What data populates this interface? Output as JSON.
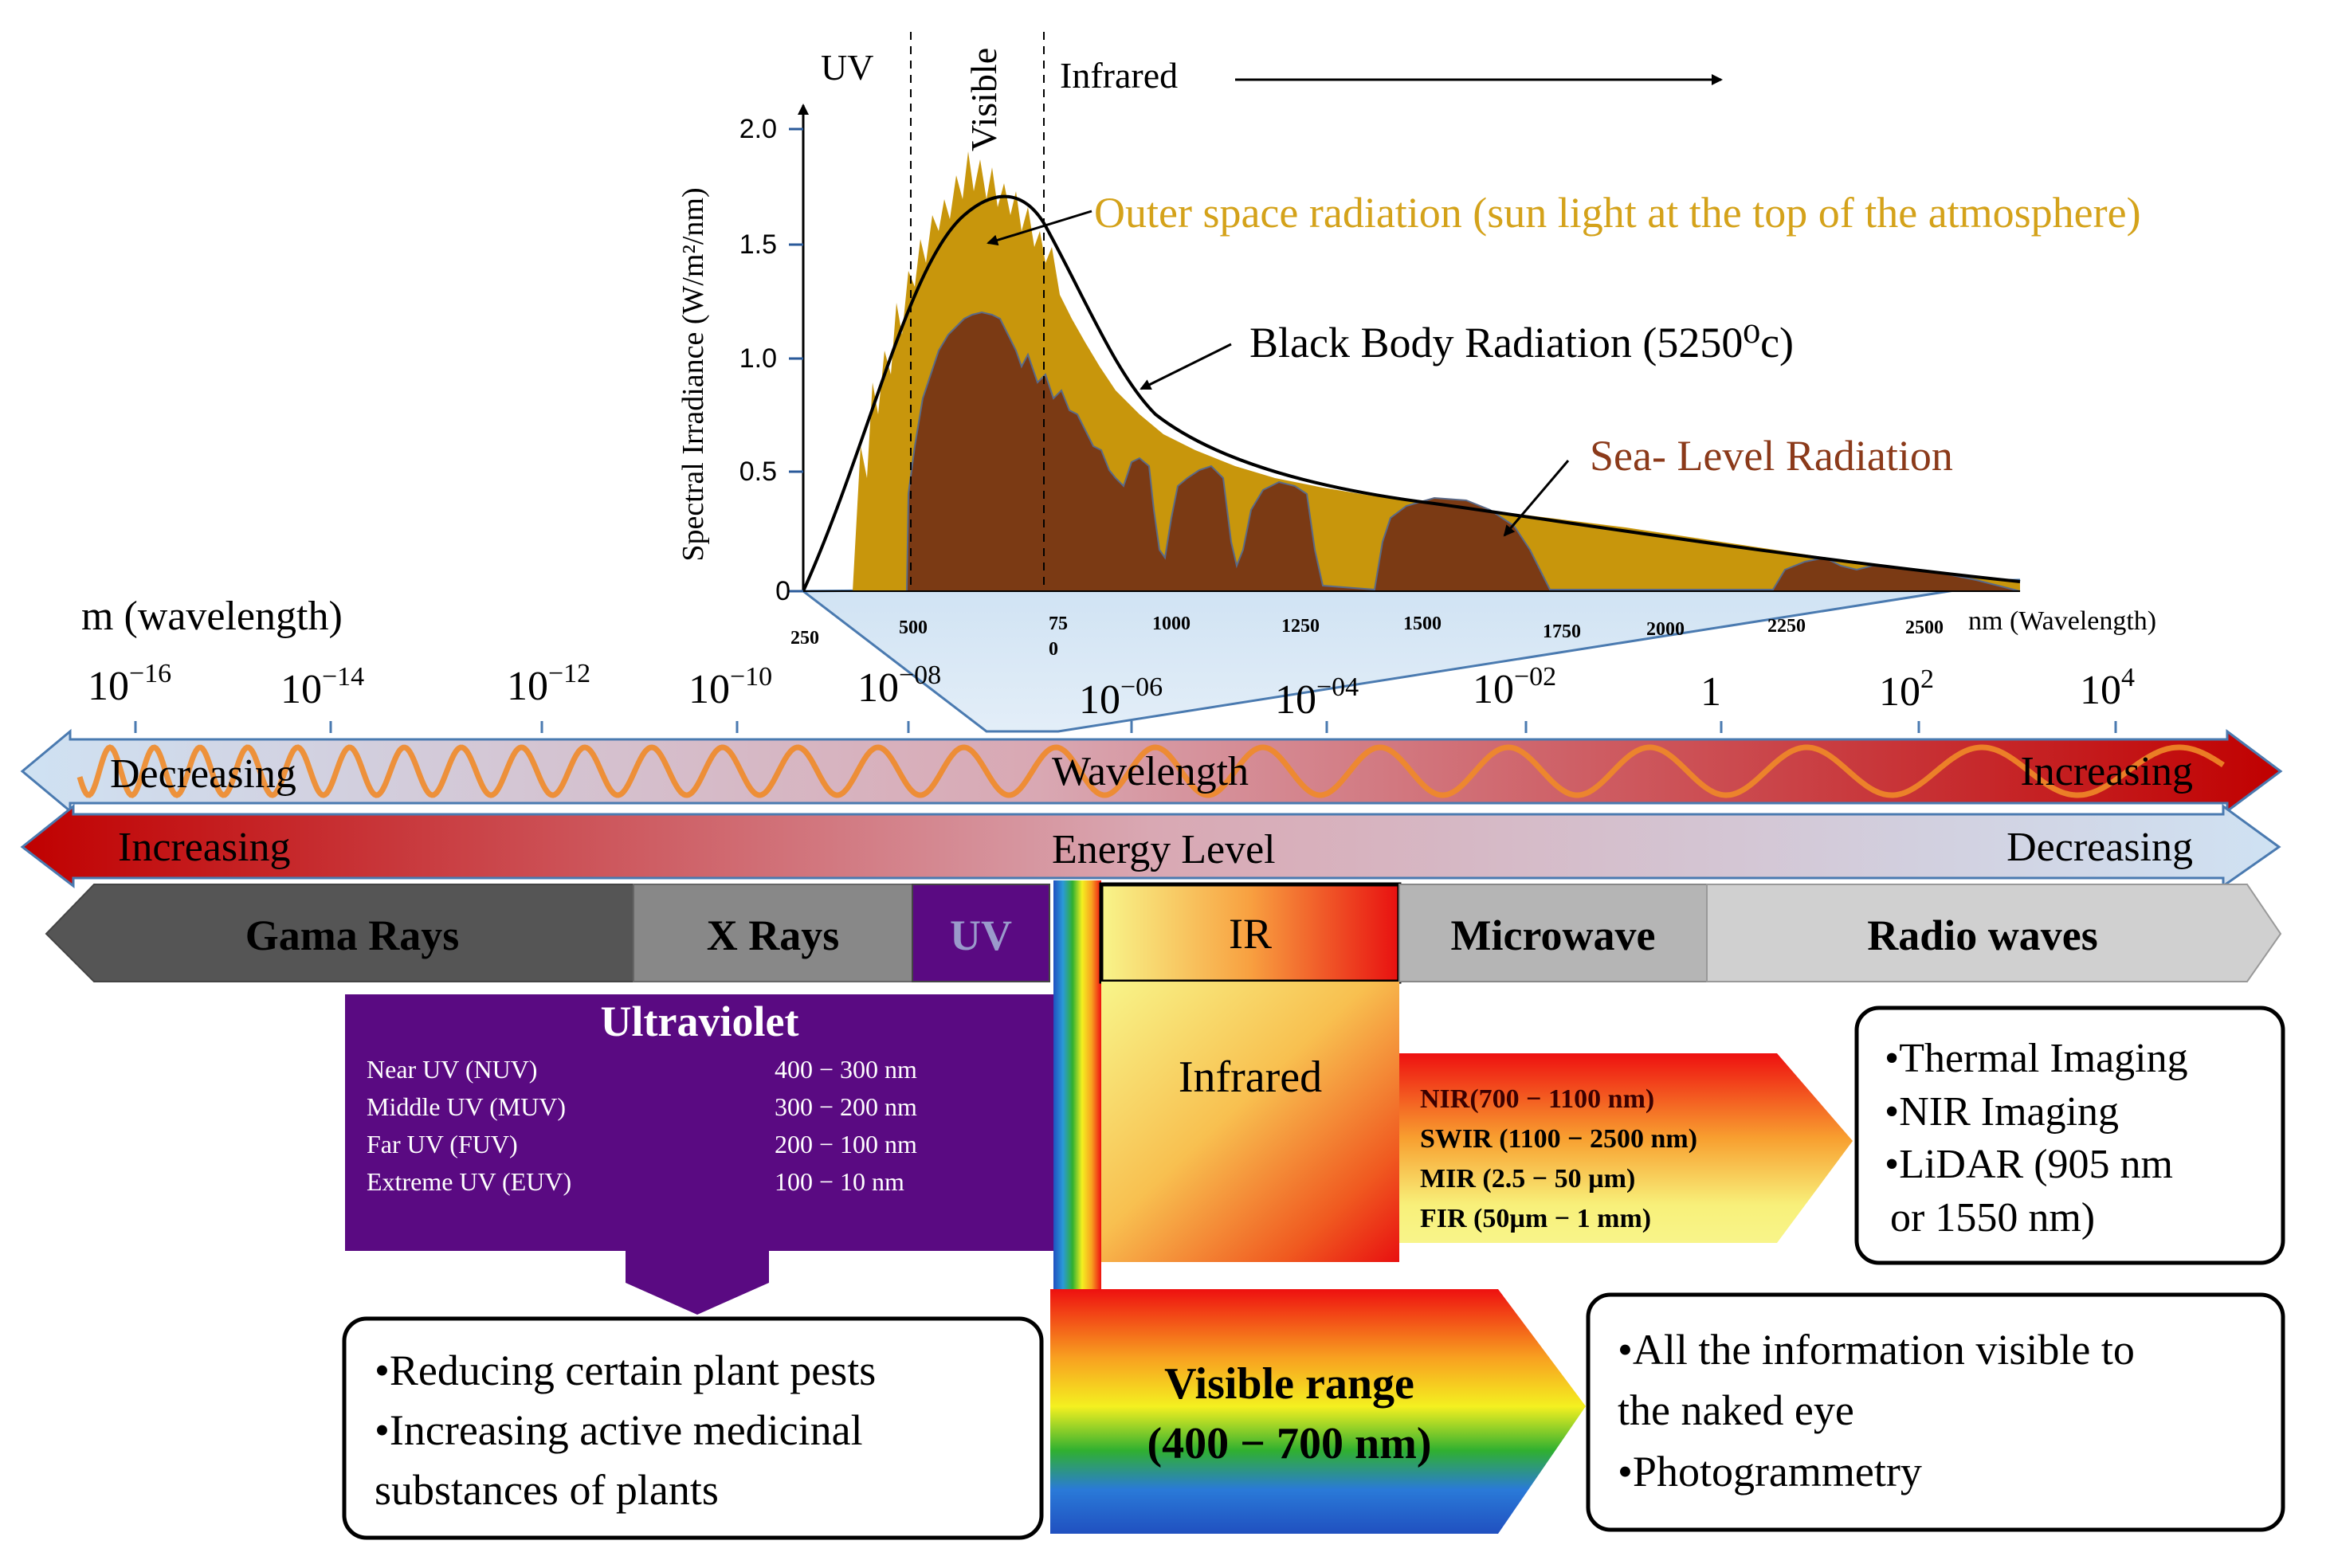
{
  "spectrum_chart": {
    "y_axis_label": "Spectral Irradiance (W/m²/nm)",
    "y_ticks": [
      "2.0",
      "1.5",
      "1.0",
      "0.5",
      "0"
    ],
    "x_ticks": [
      "250",
      "500",
      "75",
      "0",
      "1000",
      "1250",
      "1500",
      "1750",
      "2000",
      "2250",
      "2500"
    ],
    "x_unit_label": "nm (Wavelength)",
    "region_uv": "UV",
    "region_visible": "Visible",
    "region_infrared": "Infrared",
    "label_outer_space": "Outer space radiation (sun light at the top of the atmosphere)",
    "label_black_body": "Black Body Radiation (5250⁰c)",
    "label_sea_level": "Sea- Level Radiation",
    "colors": {
      "outer": "#c8960c",
      "sea": "#7b3a14",
      "outer_text": "#d4a21a",
      "sea_text": "#8b3a1a"
    }
  },
  "wavelength_axis": {
    "title": "m (wavelength)",
    "ticks": [
      {
        "base": "10",
        "exp": "−16"
      },
      {
        "base": "10",
        "exp": "−14"
      },
      {
        "base": "10",
        "exp": "−12"
      },
      {
        "base": "10",
        "exp": "−10"
      },
      {
        "base": "10",
        "exp": "−08"
      },
      {
        "base": "10",
        "exp": "−06"
      },
      {
        "base": "10",
        "exp": "−04"
      },
      {
        "base": "10",
        "exp": "−02"
      },
      {
        "base": "1",
        "exp": ""
      },
      {
        "base": "10",
        "exp": "2"
      },
      {
        "base": "10",
        "exp": "4"
      }
    ]
  },
  "wavelength_bar": {
    "left": "Decreasing",
    "center": "Wavelength",
    "right": "Increasing"
  },
  "energy_bar": {
    "left": "Increasing",
    "center": "Energy Level",
    "right": "Decreasing"
  },
  "bands": {
    "gamma": "Gama Rays",
    "xray": "X Rays",
    "uv": "UV",
    "ir": "IR",
    "microwave": "Microwave",
    "radio": "Radio waves"
  },
  "ultraviolet": {
    "title": "Ultraviolet",
    "rows": [
      {
        "name": "Near UV (NUV)",
        "range": "400 − 300 nm"
      },
      {
        "name": "Middle UV (MUV)",
        "range": "300 − 200 nm"
      },
      {
        "name": "Far UV (FUV)",
        "range": "200 − 100 nm"
      },
      {
        "name": "Extreme UV  (EUV)",
        "range": "100 − 10  nm"
      }
    ],
    "applications": [
      "•Reducing certain plant pests",
      "•Increasing active medicinal",
      "substances of plants"
    ]
  },
  "infrared": {
    "title": "Infrared",
    "subbands": [
      "NIR(700 − 1100 nm)",
      "SWIR (1100 − 2500 nm)",
      "MIR (2.5 − 50 µm)",
      "FIR (50µm − 1 mm)"
    ],
    "applications": [
      "•Thermal Imaging",
      "•NIR Imaging",
      "•LiDAR (905 nm",
      "or 1550 nm)"
    ]
  },
  "visible": {
    "title": "Visible range",
    "range": "(400 − 700 nm)",
    "applications": [
      "•All the information visible to",
      "the naked eye",
      "•Photogrammetry"
    ]
  }
}
